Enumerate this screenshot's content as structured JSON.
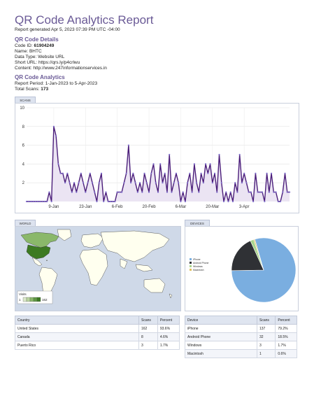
{
  "report": {
    "title": "QR Code Analytics Report",
    "generated": "Report generated Apr 5, 2023 07:39 PM UTC -04:00"
  },
  "details": {
    "heading": "QR Code Details",
    "code_id_label": "Code ID:",
    "code_id": "61904249",
    "name": "Name: BHTC",
    "data_type": "Data Type: Website URL",
    "short_url": "Short URL: https://qrs.ly/p4crlwu",
    "content": "Content: http://www.247informationservices.in"
  },
  "analytics": {
    "heading": "QR Code Analytics",
    "period": "Report Period: 1-Jan-2023 to 5-Apr-2023",
    "total_label": "Total Scans:",
    "total": "173"
  },
  "scans_tab": "SCANS",
  "world_tab": "WORLD",
  "devices_tab": "DEVICES",
  "chart_data": [
    {
      "type": "area",
      "series": [
        {
          "values": [
            0,
            0,
            0,
            0,
            0,
            0,
            0,
            0,
            0,
            0,
            1,
            0,
            8,
            7,
            4,
            3,
            3,
            2,
            3,
            2,
            1,
            2,
            1,
            2,
            3,
            2,
            1,
            2,
            3,
            2,
            1,
            0,
            2,
            3,
            0,
            1,
            0,
            0,
            0,
            0,
            1,
            1,
            1,
            2,
            3,
            6,
            2,
            3,
            2,
            1,
            2,
            1,
            3,
            2,
            1,
            3,
            4,
            2,
            1,
            4,
            2,
            3,
            1,
            5,
            1,
            2,
            3,
            2,
            0,
            1,
            0,
            2,
            3,
            1,
            4,
            2,
            1,
            3,
            2,
            4,
            3,
            4,
            2,
            3,
            1,
            5,
            2,
            0,
            1,
            0,
            1,
            0,
            2,
            1,
            5,
            2,
            3,
            2,
            1,
            1,
            0,
            3,
            1,
            1,
            1,
            0,
            3,
            1,
            3,
            1,
            1,
            0,
            0,
            1,
            3,
            1,
            1
          ],
          "color": "#4b1e7a"
        }
      ],
      "x_ticks": [
        "9-Jan",
        "23-Jan",
        "6-Feb",
        "20-Feb",
        "6-Mar",
        "20-Mar",
        "3-Apr"
      ],
      "x_tick_index": [
        12,
        26,
        40,
        54,
        68,
        82,
        96
      ],
      "y_ticks": [
        "2",
        "4",
        "6",
        "8",
        "10"
      ],
      "ylim": [
        0,
        10
      ],
      "grid": true
    },
    {
      "type": "pie",
      "labels": [
        "iPhone",
        "Android Phone",
        "Windows",
        "Macintosh"
      ],
      "values": [
        137,
        32,
        3,
        1
      ],
      "colors": [
        "#7aaee0",
        "#2f3135",
        "#a8d48c",
        "#e0c060"
      ],
      "legend": "left"
    }
  ],
  "map": {
    "legend_title": "Visits",
    "legend_min": "1",
    "legend_max": "162",
    "colors": {
      "high": "#3c7a22",
      "mid": "#8ab86a",
      "low": "#dbe9c9",
      "none": "#ffffef",
      "water": "#cfd9e8"
    }
  },
  "country_table": {
    "headers": [
      "Country",
      "Scans",
      "Percent"
    ],
    "rows": [
      [
        "United States",
        "162",
        "93.6%"
      ],
      [
        "Canada",
        "8",
        "4.6%"
      ],
      [
        "Puerto Rico",
        "3",
        "1.7%"
      ]
    ]
  },
  "device_table": {
    "headers": [
      "Device",
      "Scans",
      "Percent"
    ],
    "rows": [
      [
        "iPhone",
        "137",
        "79.2%"
      ],
      [
        "Android Phone",
        "32",
        "18.5%"
      ],
      [
        "Windows",
        "3",
        "1.7%"
      ],
      [
        "Macintosh",
        "1",
        "0.6%"
      ]
    ]
  }
}
